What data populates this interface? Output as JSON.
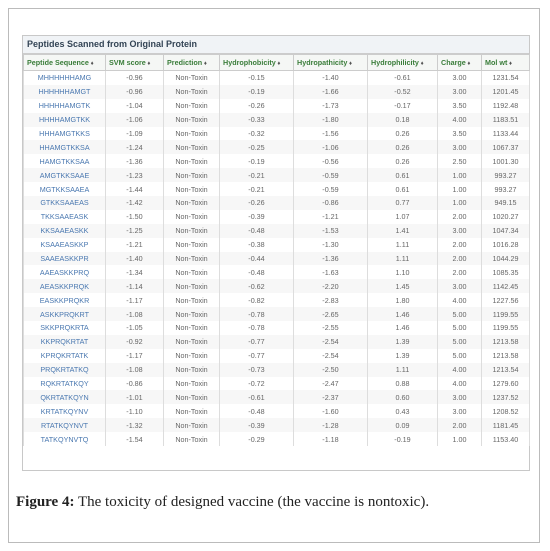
{
  "table": {
    "title": "Peptides Scanned from Original Protein",
    "columns": [
      "Peptide Sequence",
      "SVM score",
      "Prediction",
      "Hydrophobicity",
      "Hydropathicity",
      "Hydrophilicity",
      "Charge",
      "Mol wt"
    ],
    "rows": [
      [
        "MHHHHHHAMG",
        "-0.96",
        "Non-Toxin",
        "-0.15",
        "-1.40",
        "-0.61",
        "3.00",
        "1231.54"
      ],
      [
        "HHHHHHAMGT",
        "-0.96",
        "Non-Toxin",
        "-0.19",
        "-1.66",
        "-0.52",
        "3.00",
        "1201.45"
      ],
      [
        "HHHHHAMGTK",
        "-1.04",
        "Non-Toxin",
        "-0.26",
        "-1.73",
        "-0.17",
        "3.50",
        "1192.48"
      ],
      [
        "HHHHAMGTKK",
        "-1.06",
        "Non-Toxin",
        "-0.33",
        "-1.80",
        "0.18",
        "4.00",
        "1183.51"
      ],
      [
        "HHHAMGTKKS",
        "-1.09",
        "Non-Toxin",
        "-0.32",
        "-1.56",
        "0.26",
        "3.50",
        "1133.44"
      ],
      [
        "HHAMGTKKSA",
        "-1.24",
        "Non-Toxin",
        "-0.25",
        "-1.06",
        "0.26",
        "3.00",
        "1067.37"
      ],
      [
        "HAMGTKKSAA",
        "-1.36",
        "Non-Toxin",
        "-0.19",
        "-0.56",
        "0.26",
        "2.50",
        "1001.30"
      ],
      [
        "AMGTKKSAAE",
        "-1.23",
        "Non-Toxin",
        "-0.21",
        "-0.59",
        "0.61",
        "1.00",
        "993.27"
      ],
      [
        "MGTKKSAAEA",
        "-1.44",
        "Non-Toxin",
        "-0.21",
        "-0.59",
        "0.61",
        "1.00",
        "993.27"
      ],
      [
        "GTKKSAAEAS",
        "-1.42",
        "Non-Toxin",
        "-0.26",
        "-0.86",
        "0.77",
        "1.00",
        "949.15"
      ],
      [
        "TKKSAAEASK",
        "-1.50",
        "Non-Toxin",
        "-0.39",
        "-1.21",
        "1.07",
        "2.00",
        "1020.27"
      ],
      [
        "KKSAAEASKK",
        "-1.25",
        "Non-Toxin",
        "-0.48",
        "-1.53",
        "1.41",
        "3.00",
        "1047.34"
      ],
      [
        "KSAAEASKKP",
        "-1.21",
        "Non-Toxin",
        "-0.38",
        "-1.30",
        "1.11",
        "2.00",
        "1016.28"
      ],
      [
        "SAAEASKKPR",
        "-1.40",
        "Non-Toxin",
        "-0.44",
        "-1.36",
        "1.11",
        "2.00",
        "1044.29"
      ],
      [
        "AAEASKKPRQ",
        "-1.34",
        "Non-Toxin",
        "-0.48",
        "-1.63",
        "1.10",
        "2.00",
        "1085.35"
      ],
      [
        "AEASKKPRQK",
        "-1.14",
        "Non-Toxin",
        "-0.62",
        "-2.20",
        "1.45",
        "3.00",
        "1142.45"
      ],
      [
        "EASKKPRQKR",
        "-1.17",
        "Non-Toxin",
        "-0.82",
        "-2.83",
        "1.80",
        "4.00",
        "1227.56"
      ],
      [
        "ASKKPRQKRT",
        "-1.08",
        "Non-Toxin",
        "-0.78",
        "-2.65",
        "1.46",
        "5.00",
        "1199.55"
      ],
      [
        "SKKPRQKRTA",
        "-1.05",
        "Non-Toxin",
        "-0.78",
        "-2.55",
        "1.46",
        "5.00",
        "1199.55"
      ],
      [
        "KKPRQKRTAT",
        "-0.92",
        "Non-Toxin",
        "-0.77",
        "-2.54",
        "1.39",
        "5.00",
        "1213.58"
      ],
      [
        "KPRQKRTATK",
        "-1.17",
        "Non-Toxin",
        "-0.77",
        "-2.54",
        "1.39",
        "5.00",
        "1213.58"
      ],
      [
        "PRQKRTATKQ",
        "-1.08",
        "Non-Toxin",
        "-0.73",
        "-2.50",
        "1.11",
        "4.00",
        "1213.54"
      ],
      [
        "RQKRTATKQY",
        "-0.86",
        "Non-Toxin",
        "-0.72",
        "-2.47",
        "0.88",
        "4.00",
        "1279.60"
      ],
      [
        "QKRTATKQYN",
        "-1.01",
        "Non-Toxin",
        "-0.61",
        "-2.37",
        "0.60",
        "3.00",
        "1237.52"
      ],
      [
        "KRTATKQYNV",
        "-1.10",
        "Non-Toxin",
        "-0.48",
        "-1.60",
        "0.43",
        "3.00",
        "1208.52"
      ],
      [
        "RTATKQYNVT",
        "-1.32",
        "Non-Toxin",
        "-0.39",
        "-1.28",
        "0.09",
        "2.00",
        "1181.45"
      ],
      [
        "TATKQYNVTQ",
        "-1.54",
        "Non-Toxin",
        "-0.29",
        "-1.18",
        "-0.19",
        "1.00",
        "1153.40"
      ]
    ]
  },
  "caption": {
    "label": "Figure 4:",
    "text": "The toxicity of designed vaccine (the vaccine is nontoxic)."
  }
}
